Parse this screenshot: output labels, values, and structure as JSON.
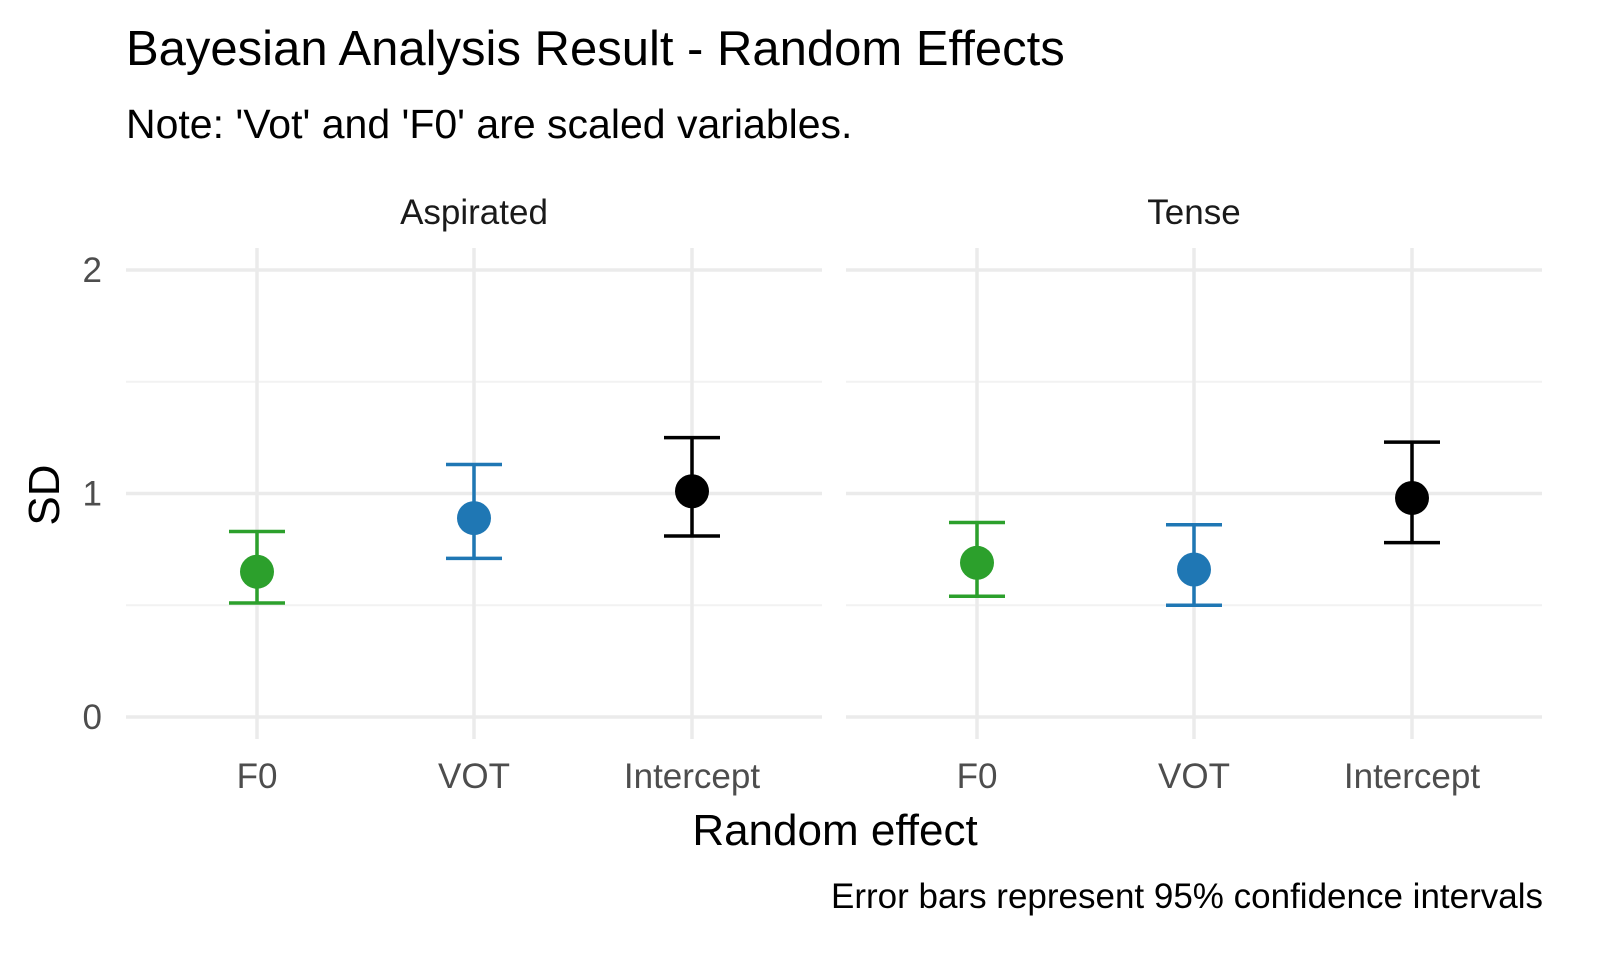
{
  "chart_data": {
    "type": "scatter",
    "title": "Bayesian Analysis Result - Random Effects",
    "subtitle": "Note: 'Vot' and 'F0' are scaled variables.",
    "xlabel": "Random effect",
    "ylabel": "SD",
    "caption": "Error bars represent 95% confidence intervals",
    "categories": [
      "F0",
      "VOT",
      "Intercept"
    ],
    "ylim": [
      0,
      2
    ],
    "yticks": [
      0,
      1,
      2
    ],
    "grid": true,
    "legend": "none",
    "colors": {
      "F0": "#2ca02c",
      "VOT": "#1f77b4",
      "Intercept": "#000000"
    },
    "panels": [
      {
        "name": "Aspirated",
        "points": [
          {
            "x": "F0",
            "y": 0.65,
            "lower": 0.51,
            "upper": 0.83
          },
          {
            "x": "VOT",
            "y": 0.89,
            "lower": 0.71,
            "upper": 1.13
          },
          {
            "x": "Intercept",
            "y": 1.01,
            "lower": 0.81,
            "upper": 1.25
          }
        ]
      },
      {
        "name": "Tense",
        "points": [
          {
            "x": "F0",
            "y": 0.69,
            "lower": 0.54,
            "upper": 0.87
          },
          {
            "x": "VOT",
            "y": 0.66,
            "lower": 0.5,
            "upper": 0.86
          },
          {
            "x": "Intercept",
            "y": 0.98,
            "lower": 0.78,
            "upper": 1.23
          }
        ]
      }
    ]
  }
}
